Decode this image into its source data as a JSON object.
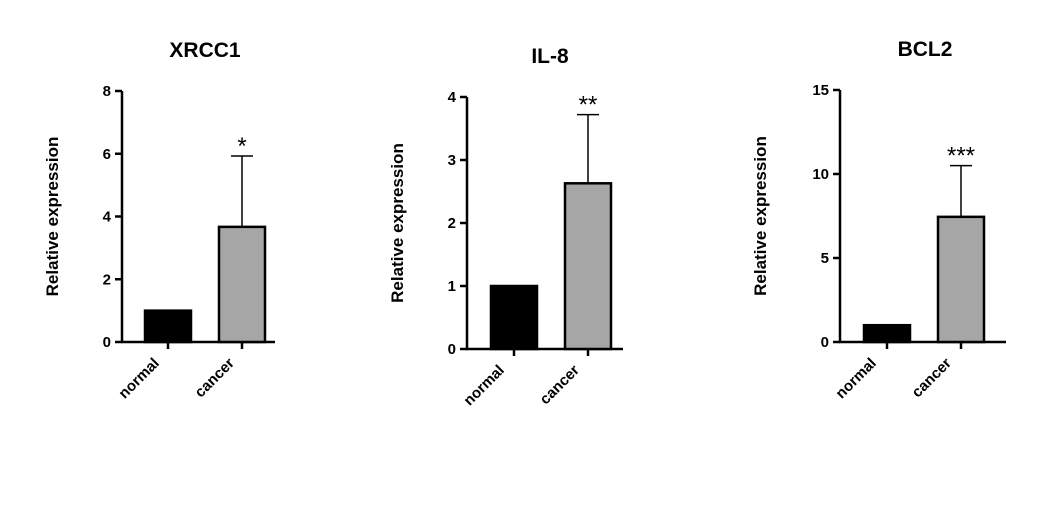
{
  "chart_data": [
    {
      "type": "bar",
      "title": "XRCC1",
      "ylabel": "Relative expression",
      "categories": [
        "normal",
        "cancer"
      ],
      "values": [
        1,
        3.67
      ],
      "error_upper": [
        0,
        5.93
      ],
      "significance": "*",
      "ylim": [
        0,
        8
      ],
      "yticks": [
        "0",
        "2",
        "4",
        "6",
        "8"
      ],
      "bar_colors": [
        "#000000",
        "#a6a6a6"
      ],
      "grid": false
    },
    {
      "type": "bar",
      "title": "IL-8",
      "ylabel": "Relative expression",
      "categories": [
        "normal",
        "cancer"
      ],
      "values": [
        1,
        2.63
      ],
      "error_upper": [
        0,
        3.72
      ],
      "significance": "**",
      "ylim": [
        0,
        4
      ],
      "yticks": [
        "0",
        "1",
        "2",
        "3",
        "4"
      ],
      "bar_colors": [
        "#000000",
        "#a6a6a6"
      ],
      "grid": false
    },
    {
      "type": "bar",
      "title": "BCL2",
      "ylabel": "Relative expression",
      "categories": [
        "normal",
        "cancer"
      ],
      "values": [
        1,
        7.45
      ],
      "error_upper": [
        0,
        10.5
      ],
      "significance": "***",
      "ylim": [
        0,
        15
      ],
      "yticks": [
        "0",
        "5",
        "10",
        "15"
      ],
      "bar_colors": [
        "#000000",
        "#a6a6a6"
      ],
      "grid": false
    }
  ]
}
